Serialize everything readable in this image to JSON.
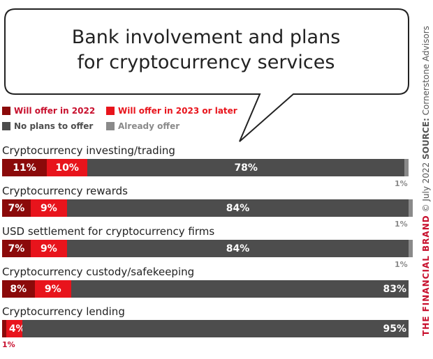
{
  "chart_data": {
    "type": "bar",
    "orientation": "horizontal",
    "stacked": true,
    "title_lines": [
      "Bank involvement and plans",
      "for cryptocurrency services"
    ],
    "xlim": [
      0,
      100
    ],
    "legend": [
      {
        "name": "Will offer in 2022",
        "color": "#8b0a0a",
        "text_color": "#c8102e"
      },
      {
        "name": "Will offer in 2023 or later",
        "color": "#e8141c",
        "text_color": "#e8141c"
      },
      {
        "name": "No plans to offer",
        "color": "#4d4d4d",
        "text_color": "#4d4d4d"
      },
      {
        "name": "Already offer",
        "color": "#8a8a8a",
        "text_color": "#8a8a8a"
      }
    ],
    "categories": [
      "Cryptocurrency investing/trading",
      "Cryptocurrency rewards",
      "USD settlement for cryptocurrency firms",
      "Cryptocurrency custody/safekeeping",
      "Cryptocurrency lending"
    ],
    "series": [
      {
        "name": "Will offer in 2022",
        "values": [
          11,
          7,
          7,
          8,
          1
        ],
        "labels": [
          "11%",
          "7%",
          "7%",
          "8%",
          "1%"
        ]
      },
      {
        "name": "Will offer in 2023 or later",
        "values": [
          10,
          9,
          9,
          9,
          4
        ],
        "labels": [
          "10%",
          "9%",
          "9%",
          "9%",
          "4%"
        ]
      },
      {
        "name": "No plans to offer",
        "values": [
          78,
          84,
          84,
          83,
          95
        ],
        "labels": [
          "78%",
          "84%",
          "84%",
          "83%",
          "95%"
        ]
      },
      {
        "name": "Already offer",
        "values": [
          1,
          1,
          1,
          0,
          0
        ],
        "labels": [
          "1%",
          "1%",
          "1%",
          "",
          ""
        ]
      }
    ]
  },
  "side_note": {
    "brand": "THE FINANCIAL BRAND",
    "copyright": "© July 2022",
    "source_label": "SOURCE:",
    "source": "Cornerstone Advisors"
  }
}
